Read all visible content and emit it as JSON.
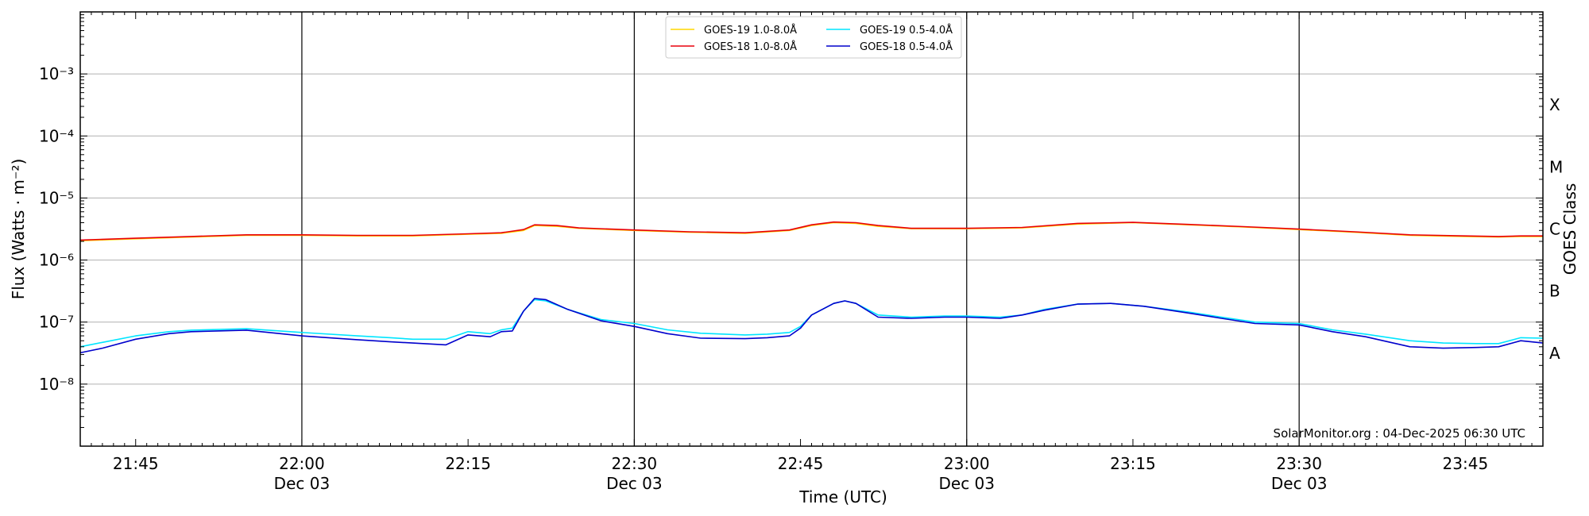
{
  "chart_data": {
    "type": "line",
    "ylabel": "Flux (Watts · m⁻²)",
    "xlabel": "Time (UTC)",
    "right_label": "GOES Class",
    "credit": "SolarMonitor.org : 04-Dec-2025 06:30 UTC",
    "y_scale": "log",
    "ylim_exp": [
      -9,
      -2
    ],
    "y_ticks": [
      {
        "exp": -8,
        "label": "10⁻⁸"
      },
      {
        "exp": -7,
        "label": "10⁻⁷"
      },
      {
        "exp": -6,
        "label": "10⁻⁶"
      },
      {
        "exp": -5,
        "label": "10⁻⁵"
      },
      {
        "exp": -4,
        "label": "10⁻⁴"
      },
      {
        "exp": -3,
        "label": "10⁻³"
      }
    ],
    "goes_classes": [
      {
        "label": "A",
        "exp": -7.5
      },
      {
        "label": "B",
        "exp": -6.5
      },
      {
        "label": "C",
        "exp": -5.5
      },
      {
        "label": "M",
        "exp": -4.5
      },
      {
        "label": "X",
        "exp": -3.5
      }
    ],
    "xlim": [
      "21:40",
      "23:52"
    ],
    "x_ticks": [
      {
        "time": "21:45",
        "label": "21:45",
        "sub": ""
      },
      {
        "time": "22:00",
        "label": "22:00",
        "sub": "Dec 03"
      },
      {
        "time": "22:15",
        "label": "22:15",
        "sub": ""
      },
      {
        "time": "22:30",
        "label": "22:30",
        "sub": "Dec 03"
      },
      {
        "time": "22:45",
        "label": "22:45",
        "sub": ""
      },
      {
        "time": "23:00",
        "label": "23:00",
        "sub": "Dec 03"
      },
      {
        "time": "23:15",
        "label": "23:15",
        "sub": ""
      },
      {
        "time": "23:30",
        "label": "23:30",
        "sub": "Dec 03"
      },
      {
        "time": "23:45",
        "label": "23:45",
        "sub": ""
      }
    ],
    "vertical_lines": [
      "22:00",
      "22:30",
      "23:00",
      "23:30"
    ],
    "grid": "horizontal",
    "legend_position": "top-center",
    "series": [
      {
        "name": "GOES-19 1.0-8.0Å",
        "color": "#ffd700",
        "x": [
          "21:40",
          "21:45",
          "21:50",
          "21:55",
          "22:00",
          "22:05",
          "22:10",
          "22:15",
          "22:18",
          "22:20",
          "22:21",
          "22:23",
          "22:25",
          "22:30",
          "22:35",
          "22:40",
          "22:44",
          "22:46",
          "22:48",
          "22:50",
          "22:52",
          "22:55",
          "23:00",
          "23:05",
          "23:10",
          "23:15",
          "23:20",
          "23:25",
          "23:30",
          "23:35",
          "23:40",
          "23:45",
          "23:48",
          "23:50",
          "23:52"
        ],
        "values": [
          2.05e-06,
          2.2e-06,
          2.35e-06,
          2.5e-06,
          2.5e-06,
          2.45e-06,
          2.45e-06,
          2.6e-06,
          2.7e-06,
          3e-06,
          3.6e-06,
          3.5e-06,
          3.25e-06,
          3e-06,
          2.8e-06,
          2.7e-06,
          3e-06,
          3.6e-06,
          4e-06,
          3.9e-06,
          3.5e-06,
          3.2e-06,
          3.2e-06,
          3.3e-06,
          3.8e-06,
          4e-06,
          3.7e-06,
          3.4e-06,
          3.1e-06,
          2.8e-06,
          2.5e-06,
          2.4e-06,
          2.35e-06,
          2.4e-06,
          2.4e-06
        ]
      },
      {
        "name": "GOES-18 1.0-8.0Å",
        "color": "#e8000b",
        "x": [
          "21:40",
          "21:45",
          "21:50",
          "21:55",
          "22:00",
          "22:05",
          "22:10",
          "22:15",
          "22:18",
          "22:20",
          "22:21",
          "22:23",
          "22:25",
          "22:30",
          "22:35",
          "22:40",
          "22:44",
          "22:46",
          "22:48",
          "22:50",
          "22:52",
          "22:55",
          "23:00",
          "23:05",
          "23:10",
          "23:15",
          "23:20",
          "23:25",
          "23:30",
          "23:35",
          "23:40",
          "23:45",
          "23:48",
          "23:50",
          "23:52"
        ],
        "values": [
          2.1e-06,
          2.25e-06,
          2.4e-06,
          2.55e-06,
          2.55e-06,
          2.5e-06,
          2.5e-06,
          2.65e-06,
          2.75e-06,
          3.1e-06,
          3.7e-06,
          3.6e-06,
          3.3e-06,
          3.05e-06,
          2.85e-06,
          2.75e-06,
          3.05e-06,
          3.7e-06,
          4.1e-06,
          4e-06,
          3.6e-06,
          3.25e-06,
          3.25e-06,
          3.35e-06,
          3.9e-06,
          4.05e-06,
          3.75e-06,
          3.45e-06,
          3.15e-06,
          2.85e-06,
          2.55e-06,
          2.45e-06,
          2.4e-06,
          2.45e-06,
          2.45e-06
        ]
      },
      {
        "name": "GOES-19 0.5-4.0Å",
        "color": "#00e5ff",
        "x": [
          "21:40",
          "21:42",
          "21:45",
          "21:48",
          "21:50",
          "21:55",
          "22:00",
          "22:05",
          "22:08",
          "22:10",
          "22:13",
          "22:15",
          "22:17",
          "22:18",
          "22:19",
          "22:20",
          "22:21",
          "22:22",
          "22:24",
          "22:27",
          "22:30",
          "22:33",
          "22:36",
          "22:40",
          "22:42",
          "22:44",
          "22:45",
          "22:46",
          "22:48",
          "22:49",
          "22:50",
          "22:52",
          "22:55",
          "22:58",
          "23:00",
          "23:03",
          "23:05",
          "23:07",
          "23:10",
          "23:13",
          "23:16",
          "23:20",
          "23:23",
          "23:26",
          "23:30",
          "23:33",
          "23:36",
          "23:40",
          "23:43",
          "23:46",
          "23:48",
          "23:50",
          "23:52"
        ],
        "values": [
          4e-08,
          4.7e-08,
          6e-08,
          7e-08,
          7.4e-08,
          7.8e-08,
          6.8e-08,
          6e-08,
          5.6e-08,
          5.3e-08,
          5.3e-08,
          7e-08,
          6.5e-08,
          7.5e-08,
          8e-08,
          1.5e-07,
          2.3e-07,
          2.2e-07,
          1.6e-07,
          1.1e-07,
          9.5e-08,
          7.5e-08,
          6.6e-08,
          6.2e-08,
          6.4e-08,
          6.8e-08,
          8.5e-08,
          1.3e-07,
          2e-07,
          2.2e-07,
          2e-07,
          1.3e-07,
          1.2e-07,
          1.25e-07,
          1.25e-07,
          1.2e-07,
          1.3e-07,
          1.6e-07,
          1.95e-07,
          2e-07,
          1.8e-07,
          1.45e-07,
          1.2e-07,
          1e-07,
          9.5e-08,
          7.5e-08,
          6.4e-08,
          5e-08,
          4.6e-08,
          4.5e-08,
          4.5e-08,
          5.6e-08,
          5.5e-08
        ]
      },
      {
        "name": "GOES-18 0.5-4.0Å",
        "color": "#0000cc",
        "x": [
          "21:40",
          "21:42",
          "21:45",
          "21:48",
          "21:50",
          "21:55",
          "22:00",
          "22:05",
          "22:08",
          "22:10",
          "22:13",
          "22:15",
          "22:17",
          "22:18",
          "22:19",
          "22:20",
          "22:21",
          "22:22",
          "22:24",
          "22:27",
          "22:30",
          "22:33",
          "22:36",
          "22:40",
          "22:42",
          "22:44",
          "22:45",
          "22:46",
          "22:48",
          "22:49",
          "22:50",
          "22:52",
          "22:55",
          "22:58",
          "23:00",
          "23:03",
          "23:05",
          "23:07",
          "23:10",
          "23:13",
          "23:16",
          "23:20",
          "23:23",
          "23:26",
          "23:30",
          "23:33",
          "23:36",
          "23:40",
          "23:43",
          "23:46",
          "23:48",
          "23:50",
          "23:52"
        ],
        "values": [
          3.2e-08,
          3.8e-08,
          5.3e-08,
          6.5e-08,
          7e-08,
          7.4e-08,
          6e-08,
          5.2e-08,
          4.8e-08,
          4.6e-08,
          4.3e-08,
          6.2e-08,
          5.8e-08,
          7e-08,
          7.2e-08,
          1.5e-07,
          2.4e-07,
          2.3e-07,
          1.6e-07,
          1.05e-07,
          8.5e-08,
          6.5e-08,
          5.5e-08,
          5.4e-08,
          5.6e-08,
          6e-08,
          8e-08,
          1.3e-07,
          2e-07,
          2.2e-07,
          2e-07,
          1.2e-07,
          1.15e-07,
          1.2e-07,
          1.2e-07,
          1.15e-07,
          1.3e-07,
          1.55e-07,
          1.95e-07,
          2e-07,
          1.8e-07,
          1.4e-07,
          1.15e-07,
          9.5e-08,
          9e-08,
          7e-08,
          5.8e-08,
          4e-08,
          3.8e-08,
          3.9e-08,
          4e-08,
          5e-08,
          4.6e-08
        ]
      }
    ]
  }
}
